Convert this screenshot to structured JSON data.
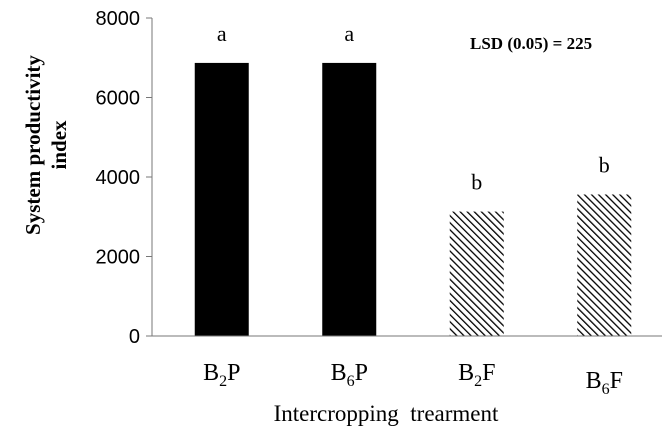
{
  "chart_data": {
    "type": "bar",
    "categories": [
      {
        "base": "B",
        "sub": "2",
        "tail": "P"
      },
      {
        "base": "B",
        "sub": "6",
        "tail": "P"
      },
      {
        "base": "B",
        "sub": "2",
        "tail": "F"
      },
      {
        "base": "B",
        "sub": "6",
        "tail": "F"
      }
    ],
    "values": [
      6870,
      6870,
      3130,
      3560
    ],
    "significance_letters": [
      "a",
      "a",
      "b",
      "b"
    ],
    "bar_fills": [
      "solid",
      "solid",
      "hatched",
      "hatched"
    ],
    "bar_color": "#000000",
    "ylabel_lines": [
      "System productivity",
      "index"
    ],
    "xlabel": "Intercropping  trearment",
    "yticks": [
      0,
      2000,
      4000,
      6000,
      8000
    ],
    "ylim": [
      0,
      8000
    ],
    "annotation": "LSD (0.05) = 225",
    "grid": false,
    "legend": "none"
  }
}
